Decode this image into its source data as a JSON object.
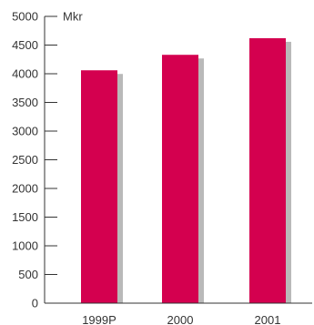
{
  "colors": {
    "bar": "#d4004f",
    "shadow": "#b9b9b9",
    "axis": "#333333",
    "text": "#333333"
  },
  "chart_data": {
    "type": "bar",
    "unit_label": "Mkr",
    "categories": [
      "1999P",
      "2000",
      "2001"
    ],
    "values": [
      4060,
      4330,
      4620
    ],
    "ylim": [
      0,
      5000
    ],
    "yticks": [
      0,
      500,
      1000,
      1500,
      2000,
      2500,
      3000,
      3500,
      4000,
      4500,
      5000
    ],
    "ytick_labels": [
      "0",
      "500",
      "1000",
      "1500",
      "2000",
      "2500",
      "3000",
      "3500",
      "4000",
      "4500",
      "5000"
    ],
    "grid": false,
    "legend": "none"
  }
}
